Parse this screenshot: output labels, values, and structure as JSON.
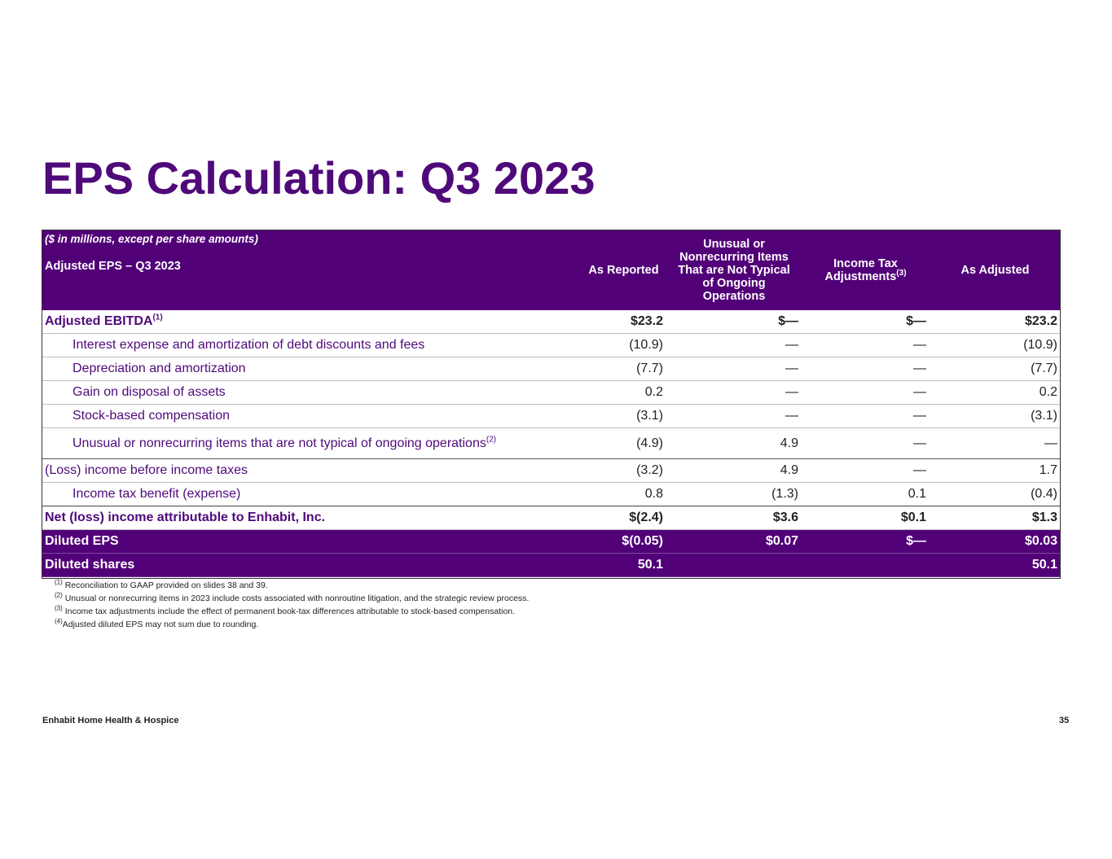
{
  "title": "EPS Calculation: Q3 2023",
  "table": {
    "note": "($ in millions, except per share amounts)",
    "subtitle": "Adjusted EPS – Q3 2023",
    "columns": {
      "as_reported": "As Reported",
      "unusual_line1": "Unusual or",
      "unusual_line2": "Nonrecurring Items",
      "unusual_line3": "That are Not Typical",
      "unusual_line4": "of Ongoing",
      "unusual_line5": "Operations",
      "tax_line1": "Income Tax",
      "tax_line2": "Adjustments",
      "tax_sup": "(3)",
      "as_adjusted": "As Adjusted"
    },
    "rows": [
      {
        "label": "Adjusted EBITDA",
        "sup": "(1)",
        "as_reported": "$23.2",
        "unusual": "$—",
        "tax": "$—",
        "as_adjusted": "$23.2"
      },
      {
        "label": "Interest expense and amortization of debt discounts and fees",
        "as_reported": "(10.9)",
        "unusual": "—",
        "tax": "—",
        "as_adjusted": "(10.9)"
      },
      {
        "label": "Depreciation and amortization",
        "as_reported": "(7.7)",
        "unusual": "—",
        "tax": "—",
        "as_adjusted": "(7.7)"
      },
      {
        "label": "Gain on disposal of assets",
        "as_reported": "0.2",
        "unusual": "—",
        "tax": "—",
        "as_adjusted": "0.2"
      },
      {
        "label": "Stock-based compensation",
        "as_reported": "(3.1)",
        "unusual": "—",
        "tax": "—",
        "as_adjusted": "(3.1)"
      },
      {
        "label": "Unusual or nonrecurring items that are not typical of ongoing operations",
        "sup": "(2)",
        "as_reported": "(4.9)",
        "unusual": "4.9",
        "tax": "—",
        "as_adjusted": "—"
      },
      {
        "label": "(Loss) income before income taxes",
        "as_reported": "(3.2)",
        "unusual": "4.9",
        "tax": "—",
        "as_adjusted": "1.7"
      },
      {
        "label": "Income tax benefit (expense)",
        "as_reported": "0.8",
        "unusual": "(1.3)",
        "tax": "0.1",
        "as_adjusted": "(0.4)"
      },
      {
        "label": "Net (loss) income attributable to Enhabit, Inc.",
        "as_reported": "$(2.4)",
        "unusual": "$3.6",
        "tax": "$0.1",
        "as_adjusted": "$1.3"
      },
      {
        "label": "Diluted EPS",
        "as_reported": "$(0.05)",
        "unusual": "$0.07",
        "tax": "$—",
        "as_adjusted": "$0.03"
      },
      {
        "label": "Diluted shares",
        "as_reported": "50.1",
        "unusual": "",
        "tax": "",
        "as_adjusted": "50.1"
      }
    ]
  },
  "footnotes": [
    {
      "mark": "(1)",
      "text": " Reconciliation to GAAP provided on slides 38 and 39."
    },
    {
      "mark": "(2)",
      "text": " Unusual or nonrecurring items in 2023 include costs associated with nonroutine litigation, and the strategic review process."
    },
    {
      "mark": "(3)",
      "text": " Income tax adjustments include the effect of permanent book-tax differences attributable to stock-based compensation."
    },
    {
      "mark": "(4)",
      "text": "Adjusted diluted EPS may not sum due to rounding."
    }
  ],
  "footer": {
    "company": "Enhabit Home Health & Hospice",
    "page": "35"
  },
  "colors": {
    "brand_purple": "#520078",
    "title_purple": "#4f0a7a"
  }
}
